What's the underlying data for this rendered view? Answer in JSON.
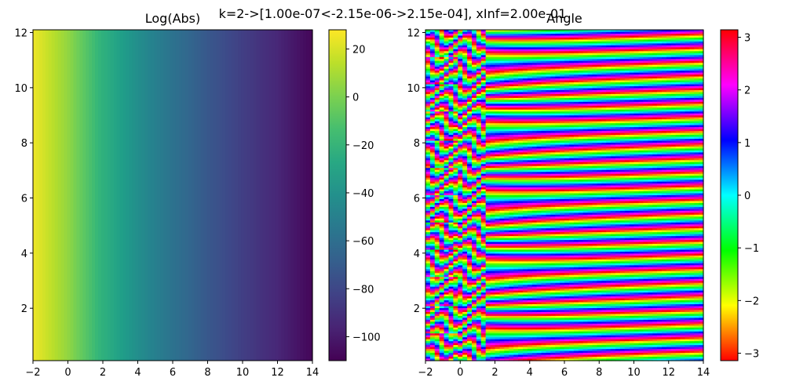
{
  "suptitle": "k=2->[1.00e-07<-2.15e-06->2.15e-04], xInf=2.00e-01",
  "chart_data": [
    {
      "type": "heatmap",
      "title": "Log(Abs)",
      "colormap": "viridis",
      "xlim": [
        -2,
        14
      ],
      "ylim": [
        0.1,
        12.1
      ],
      "xticks": [
        -2,
        0,
        2,
        4,
        6,
        8,
        10,
        12,
        14
      ],
      "yticks": [
        2,
        4,
        6,
        8,
        10,
        12
      ],
      "colorbar": {
        "min": -110,
        "max": 28,
        "ticks": [
          20,
          0,
          -20,
          -40,
          -60,
          -80,
          -100
        ]
      },
      "field": {
        "description_values": "value decreases roughly linearly with x, from about 25 at x=-2 to about -108 at x=14; nearly constant in y",
        "x_samples": [
          -2,
          0,
          2,
          4,
          6,
          8,
          10,
          12,
          14
        ],
        "values": [
          25,
          5,
          -22,
          -42,
          -58,
          -72,
          -84,
          -95,
          -108
        ]
      }
    },
    {
      "type": "heatmap",
      "title": "Angle",
      "colormap": "hsv",
      "xlim": [
        -2,
        14
      ],
      "ylim": [
        0.1,
        12.1
      ],
      "xticks": [
        -2,
        0,
        2,
        4,
        6,
        8,
        10,
        12,
        14
      ],
      "yticks": [
        2,
        4,
        6,
        8,
        10,
        12
      ],
      "colorbar": {
        "min": -3.14159,
        "max": 3.14159,
        "ticks": [
          3,
          2,
          1,
          0,
          -1,
          -2,
          -3
        ]
      },
      "field": {
        "description_values": "phase wraps in horizontal bands across y (about 24 cycles over y range), bands bend near x≈0–2",
        "y_cycles": 24
      }
    }
  ],
  "colors": {
    "viridis": [
      "#440154",
      "#482878",
      "#3e4989",
      "#31688e",
      "#26828e",
      "#1f9e89",
      "#35b779",
      "#6ece58",
      "#b5de2b",
      "#fde725"
    ]
  }
}
